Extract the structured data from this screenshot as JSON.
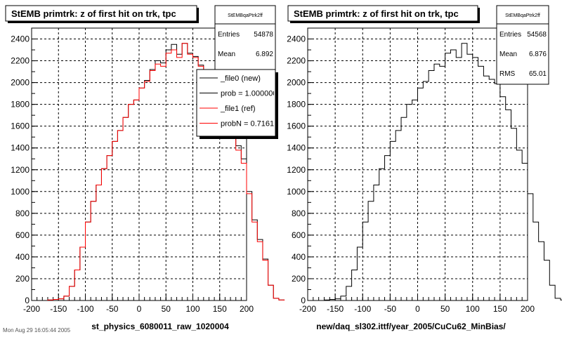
{
  "chart_data": [
    {
      "type": "histogram",
      "title": "StEMB primtrk: z of first hit on trk, tpc",
      "xlabel": "st_physics_6080011_raw_1020004",
      "xlim": [
        -200,
        200
      ],
      "ylim": [
        0,
        2500
      ],
      "xticks": [
        -200,
        -150,
        -100,
        -50,
        0,
        50,
        100,
        150,
        200
      ],
      "yticks": [
        0,
        200,
        400,
        600,
        800,
        1000,
        1200,
        1400,
        1600,
        1800,
        2000,
        2200,
        2400
      ],
      "grid": true,
      "bin_edges_start": -170,
      "bin_width": 10,
      "series": [
        {
          "name": "_file0 (new)",
          "color": "#000000",
          "values": [
            5,
            10,
            15,
            40,
            130,
            280,
            490,
            720,
            910,
            1060,
            1210,
            1330,
            1460,
            1560,
            1680,
            1800,
            1840,
            1950,
            2020,
            2120,
            2200,
            2180,
            2300,
            2350,
            2260,
            2360,
            2270,
            2240,
            2160,
            2080,
            2050,
            2000,
            1900,
            1780,
            1620,
            1420,
            1300,
            1000,
            740,
            560,
            380,
            140,
            20,
            5
          ]
        },
        {
          "name": "_file1 (ref)",
          "color": "#ff0000",
          "values": [
            5,
            10,
            15,
            40,
            130,
            280,
            490,
            720,
            910,
            1060,
            1210,
            1330,
            1460,
            1560,
            1680,
            1800,
            1840,
            1950,
            2010,
            2110,
            2170,
            2150,
            2270,
            2300,
            2230,
            2360,
            2260,
            2230,
            2150,
            2060,
            2030,
            1990,
            1870,
            1750,
            1580,
            1380,
            1260,
            980,
            720,
            540,
            370,
            140,
            20,
            5
          ]
        }
      ],
      "stats": {
        "name": "StEMBqaPtrk2ff",
        "rows": [
          {
            "label": "Entries",
            "value": "54878"
          },
          {
            "label": "Mean",
            "value": "6.892"
          }
        ]
      },
      "legend": {
        "placement": "top-right",
        "entries": [
          {
            "label": "_file0 (new)",
            "color": "#000000"
          },
          {
            "label": "prob = 1.000000",
            "color": "#000000"
          },
          {
            "label": "_file1 (ref)",
            "color": "#ff0000"
          },
          {
            "label": "probN = 0.716103",
            "color": "#ff0000"
          }
        ]
      }
    },
    {
      "type": "histogram",
      "title": "StEMB primtrk: z of first hit on trk, tpc",
      "xlabel": "new/daq_sl302.ittf/year_2005/CuCu62_MinBias/",
      "xlim": [
        -200,
        200
      ],
      "ylim": [
        0,
        2500
      ],
      "xticks": [
        -200,
        -150,
        -100,
        -50,
        0,
        50,
        100,
        150,
        200
      ],
      "yticks": [
        0,
        200,
        400,
        600,
        800,
        1000,
        1200,
        1400,
        1600,
        1800,
        2000,
        2200,
        2400
      ],
      "grid": true,
      "bin_edges_start": -170,
      "bin_width": 10,
      "series": [
        {
          "name": "",
          "color": "#000000",
          "values": [
            5,
            10,
            15,
            40,
            130,
            280,
            490,
            720,
            910,
            1060,
            1210,
            1330,
            1460,
            1560,
            1680,
            1800,
            1840,
            1950,
            2010,
            2110,
            2170,
            2150,
            2270,
            2300,
            2230,
            2360,
            2260,
            2230,
            2150,
            2060,
            2030,
            1990,
            1870,
            1750,
            1580,
            1380,
            1260,
            980,
            720,
            540,
            370,
            140,
            20,
            5
          ]
        }
      ],
      "stats": {
        "name": "StEMBqaPtrk2ff",
        "rows": [
          {
            "label": "Entries",
            "value": "54568"
          },
          {
            "label": "Mean",
            "value": "6.876"
          },
          {
            "label": "RMS",
            "value": "65.01"
          }
        ]
      }
    }
  ],
  "footer_text": "Mon Aug 29 16:05:44 2005"
}
